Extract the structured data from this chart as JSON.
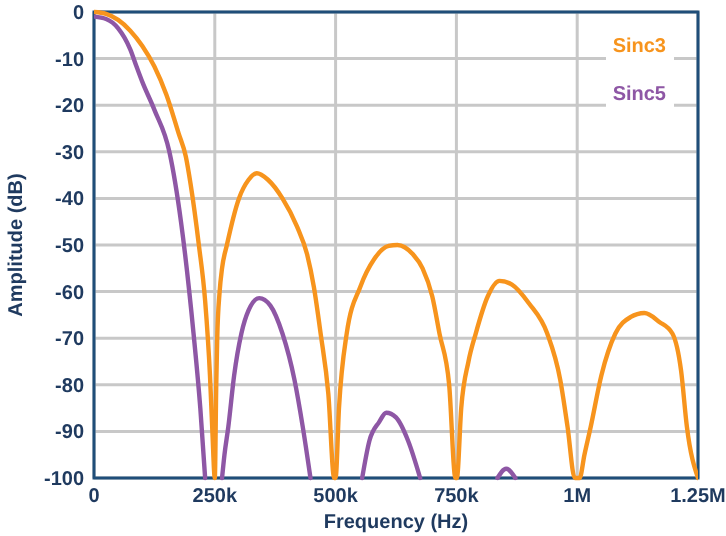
{
  "chart_data": {
    "type": "line",
    "xlabel": "Frequency (Hz)",
    "ylabel": "Amplitude (dB)",
    "xlim": [
      0,
      1250000
    ],
    "ylim": [
      -100,
      0
    ],
    "xticks": [
      0,
      {
        "value": 250000,
        "label": "250k"
      },
      {
        "value": 500000,
        "label": "500k"
      },
      {
        "value": 750000,
        "label": "750k"
      },
      {
        "value": 1000000,
        "label": "1M"
      },
      {
        "value": 1250000,
        "label": "1.25M"
      }
    ],
    "yticks": [
      0,
      -10,
      -20,
      -30,
      -40,
      -50,
      -60,
      -70,
      -80,
      -90,
      -100
    ],
    "grid": true,
    "legend": "top right",
    "series": [
      {
        "name": "Sinc3",
        "color": "#f7941d",
        "x": [
          0,
          25000,
          50000,
          75000,
          100000,
          125000,
          150000,
          175000,
          190000,
          200000,
          217000,
          230000,
          240000,
          245000,
          250000,
          253000,
          255000,
          260000,
          265000,
          275000,
          300000,
          320000,
          337000,
          360000,
          390000,
          420000,
          441000,
          455000,
          469000,
          485000,
          497000,
          500000,
          507000,
          523000,
          551000,
          580000,
          610000,
          628000,
          660000,
          680000,
          700000,
          715000,
          735000,
          748000,
          751000,
          760000,
          775000,
          790000,
          815000,
          839000,
          865000,
          900000,
          938000,
          965000,
          980000,
          995000,
          1005000,
          1015000,
          1028000,
          1050000,
          1079000,
          1110000,
          1139000,
          1170000,
          1197000,
          1215000,
          1227000,
          1250000
        ],
        "values": [
          0,
          -0.4,
          -1.7,
          -4,
          -7.3,
          -11.7,
          -17.8,
          -26,
          -31,
          -37,
          -50,
          -62,
          -78,
          -90,
          -100,
          -80,
          -70,
          -60,
          -55,
          -50,
          -40,
          -36,
          -34.6,
          -36,
          -40,
          -46,
          -52,
          -59,
          -69,
          -82,
          -100,
          -100,
          -85,
          -69,
          -59,
          -53,
          -50.2,
          -50,
          -52,
          -55,
          -61,
          -69,
          -80,
          -100,
          -100,
          -85,
          -75,
          -69,
          -61,
          -57.7,
          -58.5,
          -62.5,
          -69,
          -79,
          -89,
          -100,
          -100,
          -95,
          -89,
          -78,
          -69,
          -65.5,
          -64.6,
          -66.5,
          -69,
          -77,
          -89,
          -100
        ]
      },
      {
        "name": "Sinc5",
        "color": "#8e57a5",
        "x": [
          0,
          25000,
          50000,
          75000,
          88000,
          100000,
          125000,
          156000,
          180000,
          206000,
          220000,
          230000,
          null,
          265000,
          270000,
          278000,
          290000,
          305000,
          320000,
          342000,
          365000,
          390000,
          415000,
          432000,
          448000,
          null,
          555000,
          570000,
          590000,
          605000,
          625000,
          650000,
          675000,
          null,
          835000,
          853000,
          872000
        ],
        "values": [
          -1,
          -1.5,
          -3.5,
          -8,
          -11.7,
          -15,
          -21,
          -30,
          -45,
          -69,
          -85,
          -100,
          null,
          -100,
          -95,
          -89,
          -78,
          -69,
          -64,
          -61.4,
          -63,
          -69,
          -79,
          -89,
          -100,
          null,
          -100,
          -92,
          -88,
          -86,
          -87,
          -92,
          -100,
          null,
          -100,
          -98,
          -100
        ]
      }
    ]
  }
}
